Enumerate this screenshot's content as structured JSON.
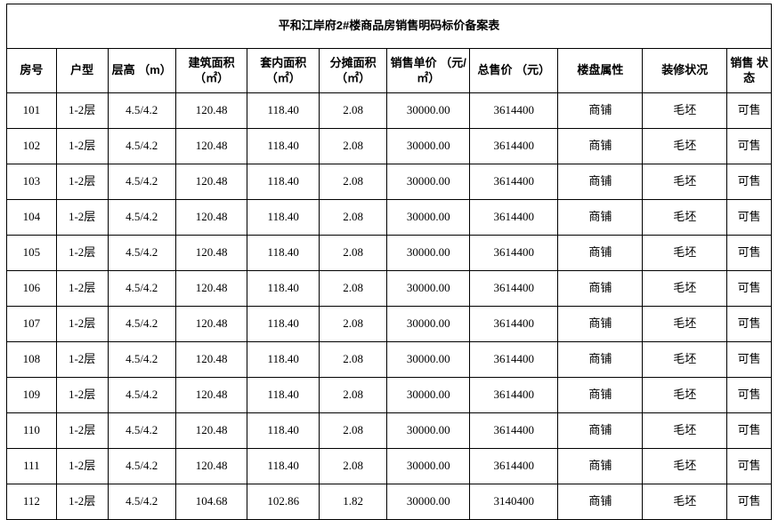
{
  "title": "平和江岸府2#楼商品房销售明码标价备案表",
  "columns": [
    "房号",
    "户型",
    "层高\n（m）",
    "建筑面积\n（㎡）",
    "套内面积\n（㎡）",
    "分摊面积\n（㎡）",
    "销售单价\n（元/㎡）",
    "总售价\n（元）",
    "楼盘属性",
    "装修状况",
    "销售\n状态"
  ],
  "rows": [
    [
      "101",
      "1-2层",
      "4.5/4.2",
      "120.48",
      "118.40",
      "2.08",
      "30000.00",
      "3614400",
      "商铺",
      "毛坯",
      "可售"
    ],
    [
      "102",
      "1-2层",
      "4.5/4.2",
      "120.48",
      "118.40",
      "2.08",
      "30000.00",
      "3614400",
      "商铺",
      "毛坯",
      "可售"
    ],
    [
      "103",
      "1-2层",
      "4.5/4.2",
      "120.48",
      "118.40",
      "2.08",
      "30000.00",
      "3614400",
      "商铺",
      "毛坯",
      "可售"
    ],
    [
      "104",
      "1-2层",
      "4.5/4.2",
      "120.48",
      "118.40",
      "2.08",
      "30000.00",
      "3614400",
      "商铺",
      "毛坯",
      "可售"
    ],
    [
      "105",
      "1-2层",
      "4.5/4.2",
      "120.48",
      "118.40",
      "2.08",
      "30000.00",
      "3614400",
      "商铺",
      "毛坯",
      "可售"
    ],
    [
      "106",
      "1-2层",
      "4.5/4.2",
      "120.48",
      "118.40",
      "2.08",
      "30000.00",
      "3614400",
      "商铺",
      "毛坯",
      "可售"
    ],
    [
      "107",
      "1-2层",
      "4.5/4.2",
      "120.48",
      "118.40",
      "2.08",
      "30000.00",
      "3614400",
      "商铺",
      "毛坯",
      "可售"
    ],
    [
      "108",
      "1-2层",
      "4.5/4.2",
      "120.48",
      "118.40",
      "2.08",
      "30000.00",
      "3614400",
      "商铺",
      "毛坯",
      "可售"
    ],
    [
      "109",
      "1-2层",
      "4.5/4.2",
      "120.48",
      "118.40",
      "2.08",
      "30000.00",
      "3614400",
      "商铺",
      "毛坯",
      "可售"
    ],
    [
      "110",
      "1-2层",
      "4.5/4.2",
      "120.48",
      "118.40",
      "2.08",
      "30000.00",
      "3614400",
      "商铺",
      "毛坯",
      "可售"
    ],
    [
      "111",
      "1-2层",
      "4.5/4.2",
      "120.48",
      "118.40",
      "2.08",
      "30000.00",
      "3614400",
      "商铺",
      "毛坯",
      "可售"
    ],
    [
      "112",
      "1-2层",
      "4.5/4.2",
      "104.68",
      "102.86",
      "1.82",
      "30000.00",
      "3140400",
      "商铺",
      "毛坯",
      "可售"
    ]
  ],
  "style": {
    "border_color": "#000000",
    "background_color": "#ffffff",
    "title_fontsize": 18,
    "header_fontsize": 13,
    "cell_fontsize": 13
  }
}
